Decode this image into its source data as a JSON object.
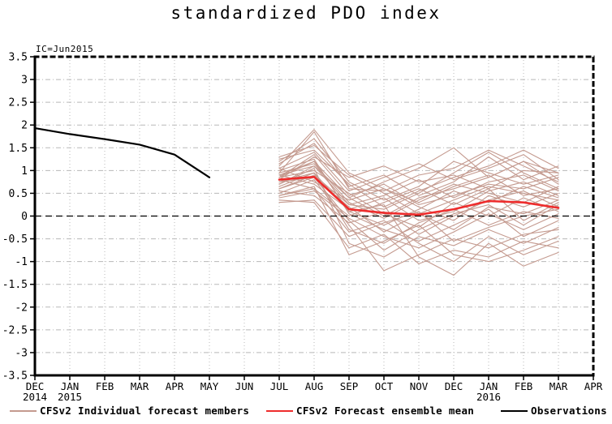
{
  "title": "standardized PDO index",
  "ic_label": "IC=Jun2015",
  "legend": {
    "members_label": "CFSv2 Individual forecast members",
    "mean_label": "CFSv2 Forecast ensemble mean",
    "observations_label": "Observations"
  },
  "colors": {
    "members": "#c49a8f",
    "mean": "#ee2c2c",
    "observations": "#000000",
    "grid": "#b8b8b8",
    "axis": "#000000",
    "background": "#ffffff"
  },
  "chart_data": {
    "type": "line",
    "title": "standardized PDO index",
    "annotation": "IC=Jun2015",
    "xlabel": "",
    "ylabel": "",
    "ylim": [
      -3.5,
      3.5
    ],
    "y_ticks": [
      3.5,
      3,
      2.5,
      2,
      1.5,
      1,
      0.5,
      0,
      -0.5,
      -1,
      -1.5,
      -2,
      -2.5,
      -3,
      -3.5
    ],
    "grid": true,
    "zero_line": true,
    "legend_position": "bottom",
    "x_categories": [
      {
        "label": "DEC",
        "year": "2014"
      },
      {
        "label": "JAN",
        "year": "2015"
      },
      {
        "label": "FEB"
      },
      {
        "label": "MAR"
      },
      {
        "label": "APR"
      },
      {
        "label": "MAY"
      },
      {
        "label": "JUN"
      },
      {
        "label": "JUL"
      },
      {
        "label": "AUG"
      },
      {
        "label": "SEP"
      },
      {
        "label": "OCT"
      },
      {
        "label": "NOV"
      },
      {
        "label": "DEC"
      },
      {
        "label": "JAN",
        "year": "2016"
      },
      {
        "label": "FEB"
      },
      {
        "label": "MAR"
      },
      {
        "label": "APR"
      }
    ],
    "series": [
      {
        "name": "Observations",
        "role": "observations",
        "start_index": 0,
        "values": [
          1.93,
          1.8,
          1.69,
          1.57,
          1.35,
          0.85
        ]
      },
      {
        "name": "CFSv2 Forecast ensemble mean",
        "role": "mean",
        "start_index": 7,
        "values": [
          0.8,
          0.86,
          0.15,
          0.07,
          0.03,
          0.15,
          0.33,
          0.3,
          0.18
        ]
      },
      {
        "name": "CFSv2 Individual forecast members",
        "role": "members",
        "start_index": 7,
        "members": [
          [
            0.95,
            1.85,
            0.6,
            0.55,
            0.9,
            1.05,
            1.45,
            1.1,
            0.75
          ],
          [
            0.8,
            1.3,
            0.85,
            1.1,
            0.75,
            0.9,
            0.6,
            1.0,
            0.95
          ],
          [
            1.1,
            1.9,
            0.95,
            0.6,
            0.3,
            0.65,
            0.9,
            0.45,
            0.6
          ],
          [
            0.7,
            1.1,
            0.4,
            0.75,
            1.05,
            1.5,
            0.85,
            1.2,
            0.7
          ],
          [
            1.25,
            1.45,
            0.7,
            0.2,
            0.55,
            0.85,
            1.1,
            1.45,
            1.05
          ],
          [
            0.6,
            0.9,
            0.25,
            0.45,
            0.8,
            0.4,
            0.75,
            0.9,
            0.55
          ],
          [
            0.9,
            1.2,
            0.1,
            -0.2,
            0.15,
            0.55,
            0.3,
            0.65,
            0.4
          ],
          [
            1.05,
            0.75,
            0.35,
            0.6,
            0.2,
            -0.1,
            0.45,
            0.2,
            0.5
          ],
          [
            0.45,
            0.6,
            0.0,
            0.3,
            0.6,
            0.25,
            0.6,
            -0.1,
            0.3
          ],
          [
            0.85,
            1.0,
            0.5,
            0.05,
            -0.25,
            0.3,
            0.0,
            0.4,
            0.1
          ],
          [
            0.75,
            0.85,
            0.2,
            -0.35,
            0.05,
            -0.3,
            0.2,
            0.05,
            0.35
          ],
          [
            1.15,
            1.6,
            0.65,
            0.9,
            0.45,
            0.75,
            1.3,
            0.8,
            1.1
          ],
          [
            0.55,
            0.45,
            -0.15,
            0.1,
            -0.4,
            0.0,
            0.35,
            0.55,
            0.2
          ],
          [
            0.95,
            1.15,
            0.3,
            -0.05,
            0.35,
            0.7,
            0.5,
            0.3,
            0.65
          ],
          [
            0.65,
            0.95,
            -0.3,
            -0.6,
            -0.15,
            0.15,
            -0.2,
            0.1,
            -0.05
          ],
          [
            0.4,
            0.55,
            -0.05,
            -0.45,
            -0.7,
            -0.35,
            0.05,
            -0.3,
            0.05
          ],
          [
            0.85,
            1.35,
            0.45,
            0.7,
            0.25,
            0.45,
            0.7,
            0.6,
            0.85
          ],
          [
            1.0,
            1.25,
            0.05,
            -0.3,
            -0.55,
            -0.2,
            0.15,
            -0.45,
            -0.1
          ],
          [
            0.3,
            0.35,
            -0.45,
            -0.15,
            0.1,
            -0.55,
            -0.25,
            0.0,
            0.15
          ],
          [
            0.9,
            0.7,
            0.15,
            0.4,
            -0.1,
            0.1,
            0.55,
            0.75,
            0.45
          ],
          [
            0.7,
            1.05,
            -0.6,
            -0.9,
            -0.45,
            -0.65,
            -0.3,
            -0.6,
            -0.25
          ],
          [
            1.2,
            1.7,
            0.75,
            0.35,
            0.65,
            1.2,
            0.95,
            0.7,
            0.9
          ],
          [
            0.5,
            0.8,
            -0.2,
            -1.2,
            -0.85,
            -0.5,
            -0.7,
            -0.4,
            -0.3
          ],
          [
            0.8,
            0.6,
            -0.35,
            -0.1,
            -0.6,
            -1.0,
            -0.45,
            -0.85,
            -0.55
          ],
          [
            1.05,
            1.4,
            0.55,
            0.85,
            1.15,
            0.8,
            1.05,
            1.35,
            0.8
          ],
          [
            0.35,
            0.3,
            -0.7,
            -0.4,
            -1.05,
            -0.75,
            -0.9,
            -0.55,
            -0.7
          ],
          [
            0.9,
            1.1,
            0.25,
            0.15,
            0.5,
            0.95,
            1.4,
            0.95,
            0.6
          ],
          [
            0.6,
            0.85,
            -0.1,
            -0.75,
            -0.3,
            0.05,
            0.25,
            -0.2,
            0.25
          ],
          [
            1.3,
            1.55,
            0.9,
            0.5,
            0.05,
            0.35,
            0.65,
            0.5,
            0.35
          ],
          [
            0.75,
            0.95,
            0.1,
            0.25,
            -0.9,
            -1.3,
            -0.6,
            -1.1,
            -0.8
          ],
          [
            0.45,
            0.65,
            -0.85,
            -0.55,
            -0.2,
            -0.85,
            -1.0,
            -0.75,
            -0.45
          ],
          [
            0.85,
            1.2,
            0.4,
            0.0,
            0.4,
            0.6,
            0.85,
            1.2,
            0.95
          ]
        ]
      }
    ]
  }
}
